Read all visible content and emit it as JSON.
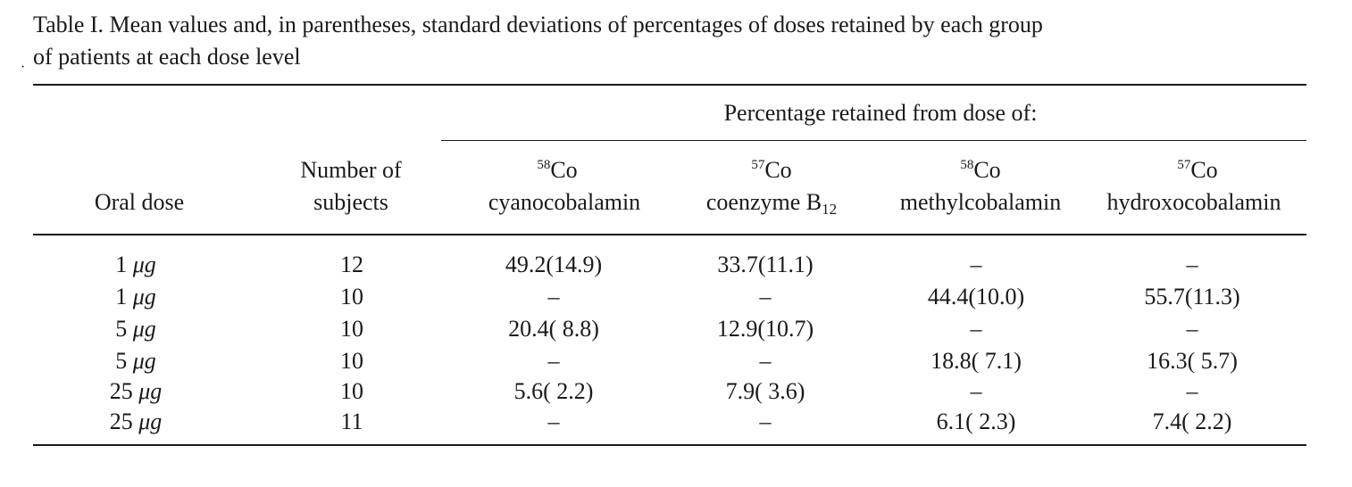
{
  "caption": {
    "line1": "Table I. Mean values and, in parentheses, standard deviations of percentages of doses retained by each group",
    "line2": "of patients at each dose level"
  },
  "table": {
    "group_header": "Percentage retained from dose of:",
    "columns": [
      {
        "line1": "",
        "line2": "Oral dose"
      },
      {
        "line1": "Number of",
        "line2": "subjects"
      },
      {
        "isotope": "58",
        "line1": "Co",
        "line2": "cyanocobalamin"
      },
      {
        "isotope": "57",
        "line1": "Co",
        "line2": "coenzyme B",
        "line2_sub": "12"
      },
      {
        "isotope": "58",
        "line1": "Co",
        "line2": "methylcobalamin"
      },
      {
        "isotope": "57",
        "line1": "Co",
        "line2": "hydroxocobalamin"
      }
    ],
    "rows": [
      {
        "dose": "1",
        "unit": "μg",
        "n": "12",
        "cyano": "49.2(14.9)",
        "coenzyme": "33.7(11.1)",
        "methyl": "–",
        "hydroxo": "–"
      },
      {
        "dose": "1",
        "unit": "μg",
        "n": "10",
        "cyano": "–",
        "coenzyme": "–",
        "methyl": "44.4(10.0)",
        "hydroxo": "55.7(11.3)"
      },
      {
        "dose": "5",
        "unit": "μg",
        "n": "10",
        "cyano": "20.4( 8.8)",
        "coenzyme": "12.9(10.7)",
        "methyl": "–",
        "hydroxo": "–"
      },
      {
        "dose": "5",
        "unit": "μg",
        "n": "10",
        "cyano": "–",
        "coenzyme": "–",
        "methyl": "18.8( 7.1)",
        "hydroxo": "16.3( 5.7)"
      },
      {
        "dose": "25",
        "unit": "μg",
        "n": "10",
        "cyano": "5.6( 2.2)",
        "coenzyme": "7.9( 3.6)",
        "methyl": "–",
        "hydroxo": "–"
      },
      {
        "dose": "25",
        "unit": "μg",
        "n": "11",
        "cyano": "–",
        "coenzyme": "–",
        "methyl": "6.1( 2.3)",
        "hydroxo": "7.4( 2.2)"
      }
    ]
  }
}
